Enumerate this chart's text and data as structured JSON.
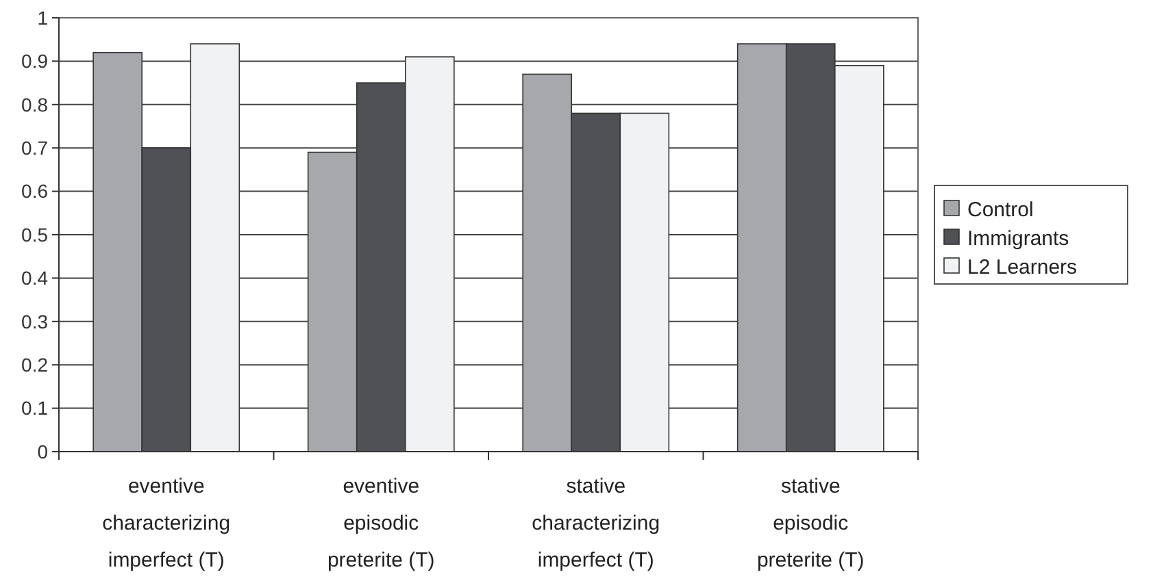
{
  "chart_data": {
    "type": "bar",
    "categories": [
      "eventive characterizing imperfect (T)",
      "eventive episodic preterite (T)",
      "stative characterizing imperfect (T)",
      "stative episodic preterite (T)"
    ],
    "series": [
      {
        "name": "Control",
        "color": "#a7a8ac",
        "values": [
          0.92,
          0.69,
          0.87,
          0.94
        ]
      },
      {
        "name": "Immigrants",
        "color": "#505154",
        "values": [
          0.7,
          0.85,
          0.78,
          0.94
        ]
      },
      {
        "name": "L2 Learners",
        "color": "#f1f2f4",
        "values": [
          0.94,
          0.91,
          0.78,
          0.89
        ]
      }
    ],
    "ylim": [
      0,
      1
    ],
    "yticks": [
      0,
      0.1,
      0.2,
      0.3,
      0.4,
      0.5,
      0.6,
      0.7,
      0.8,
      0.9,
      1
    ],
    "grid": "y",
    "legend": "right"
  }
}
